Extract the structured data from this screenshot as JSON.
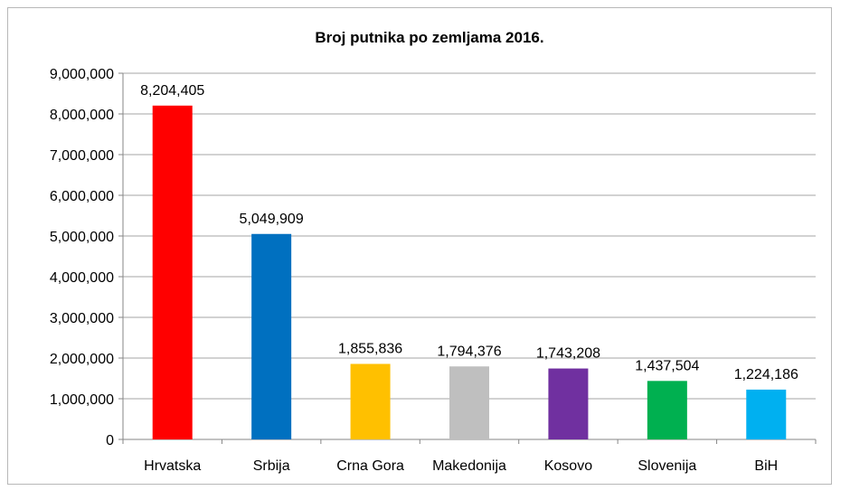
{
  "chart_data": {
    "type": "bar",
    "title": "Broj putnika po zemljama 2016.",
    "xlabel": "",
    "ylabel": "",
    "categories": [
      "Hrvatska",
      "Srbija",
      "Crna Gora",
      "Makedonija",
      "Kosovo",
      "Slovenija",
      "BiH"
    ],
    "values": [
      8204405,
      5049909,
      1855836,
      1794376,
      1743208,
      1437504,
      1224186
    ],
    "data_labels": [
      "8,204,405",
      "5,049,909",
      "1,855,836",
      "1,794,376",
      "1,743,208",
      "1,437,504",
      "1,224,186"
    ],
    "colors": [
      "#ff0000",
      "#0070c0",
      "#ffc000",
      "#bfbfbf",
      "#7030a0",
      "#00b050",
      "#00b0f0"
    ],
    "ylim": [
      0,
      9000000
    ],
    "yticks": [
      0,
      1000000,
      2000000,
      3000000,
      4000000,
      5000000,
      6000000,
      7000000,
      8000000,
      9000000
    ],
    "ytick_labels": [
      "0",
      "1,000,000",
      "2,000,000",
      "3,000,000",
      "4,000,000",
      "5,000,000",
      "6,000,000",
      "7,000,000",
      "8,000,000",
      "9,000,000"
    ],
    "grid": true,
    "legend": "none"
  }
}
